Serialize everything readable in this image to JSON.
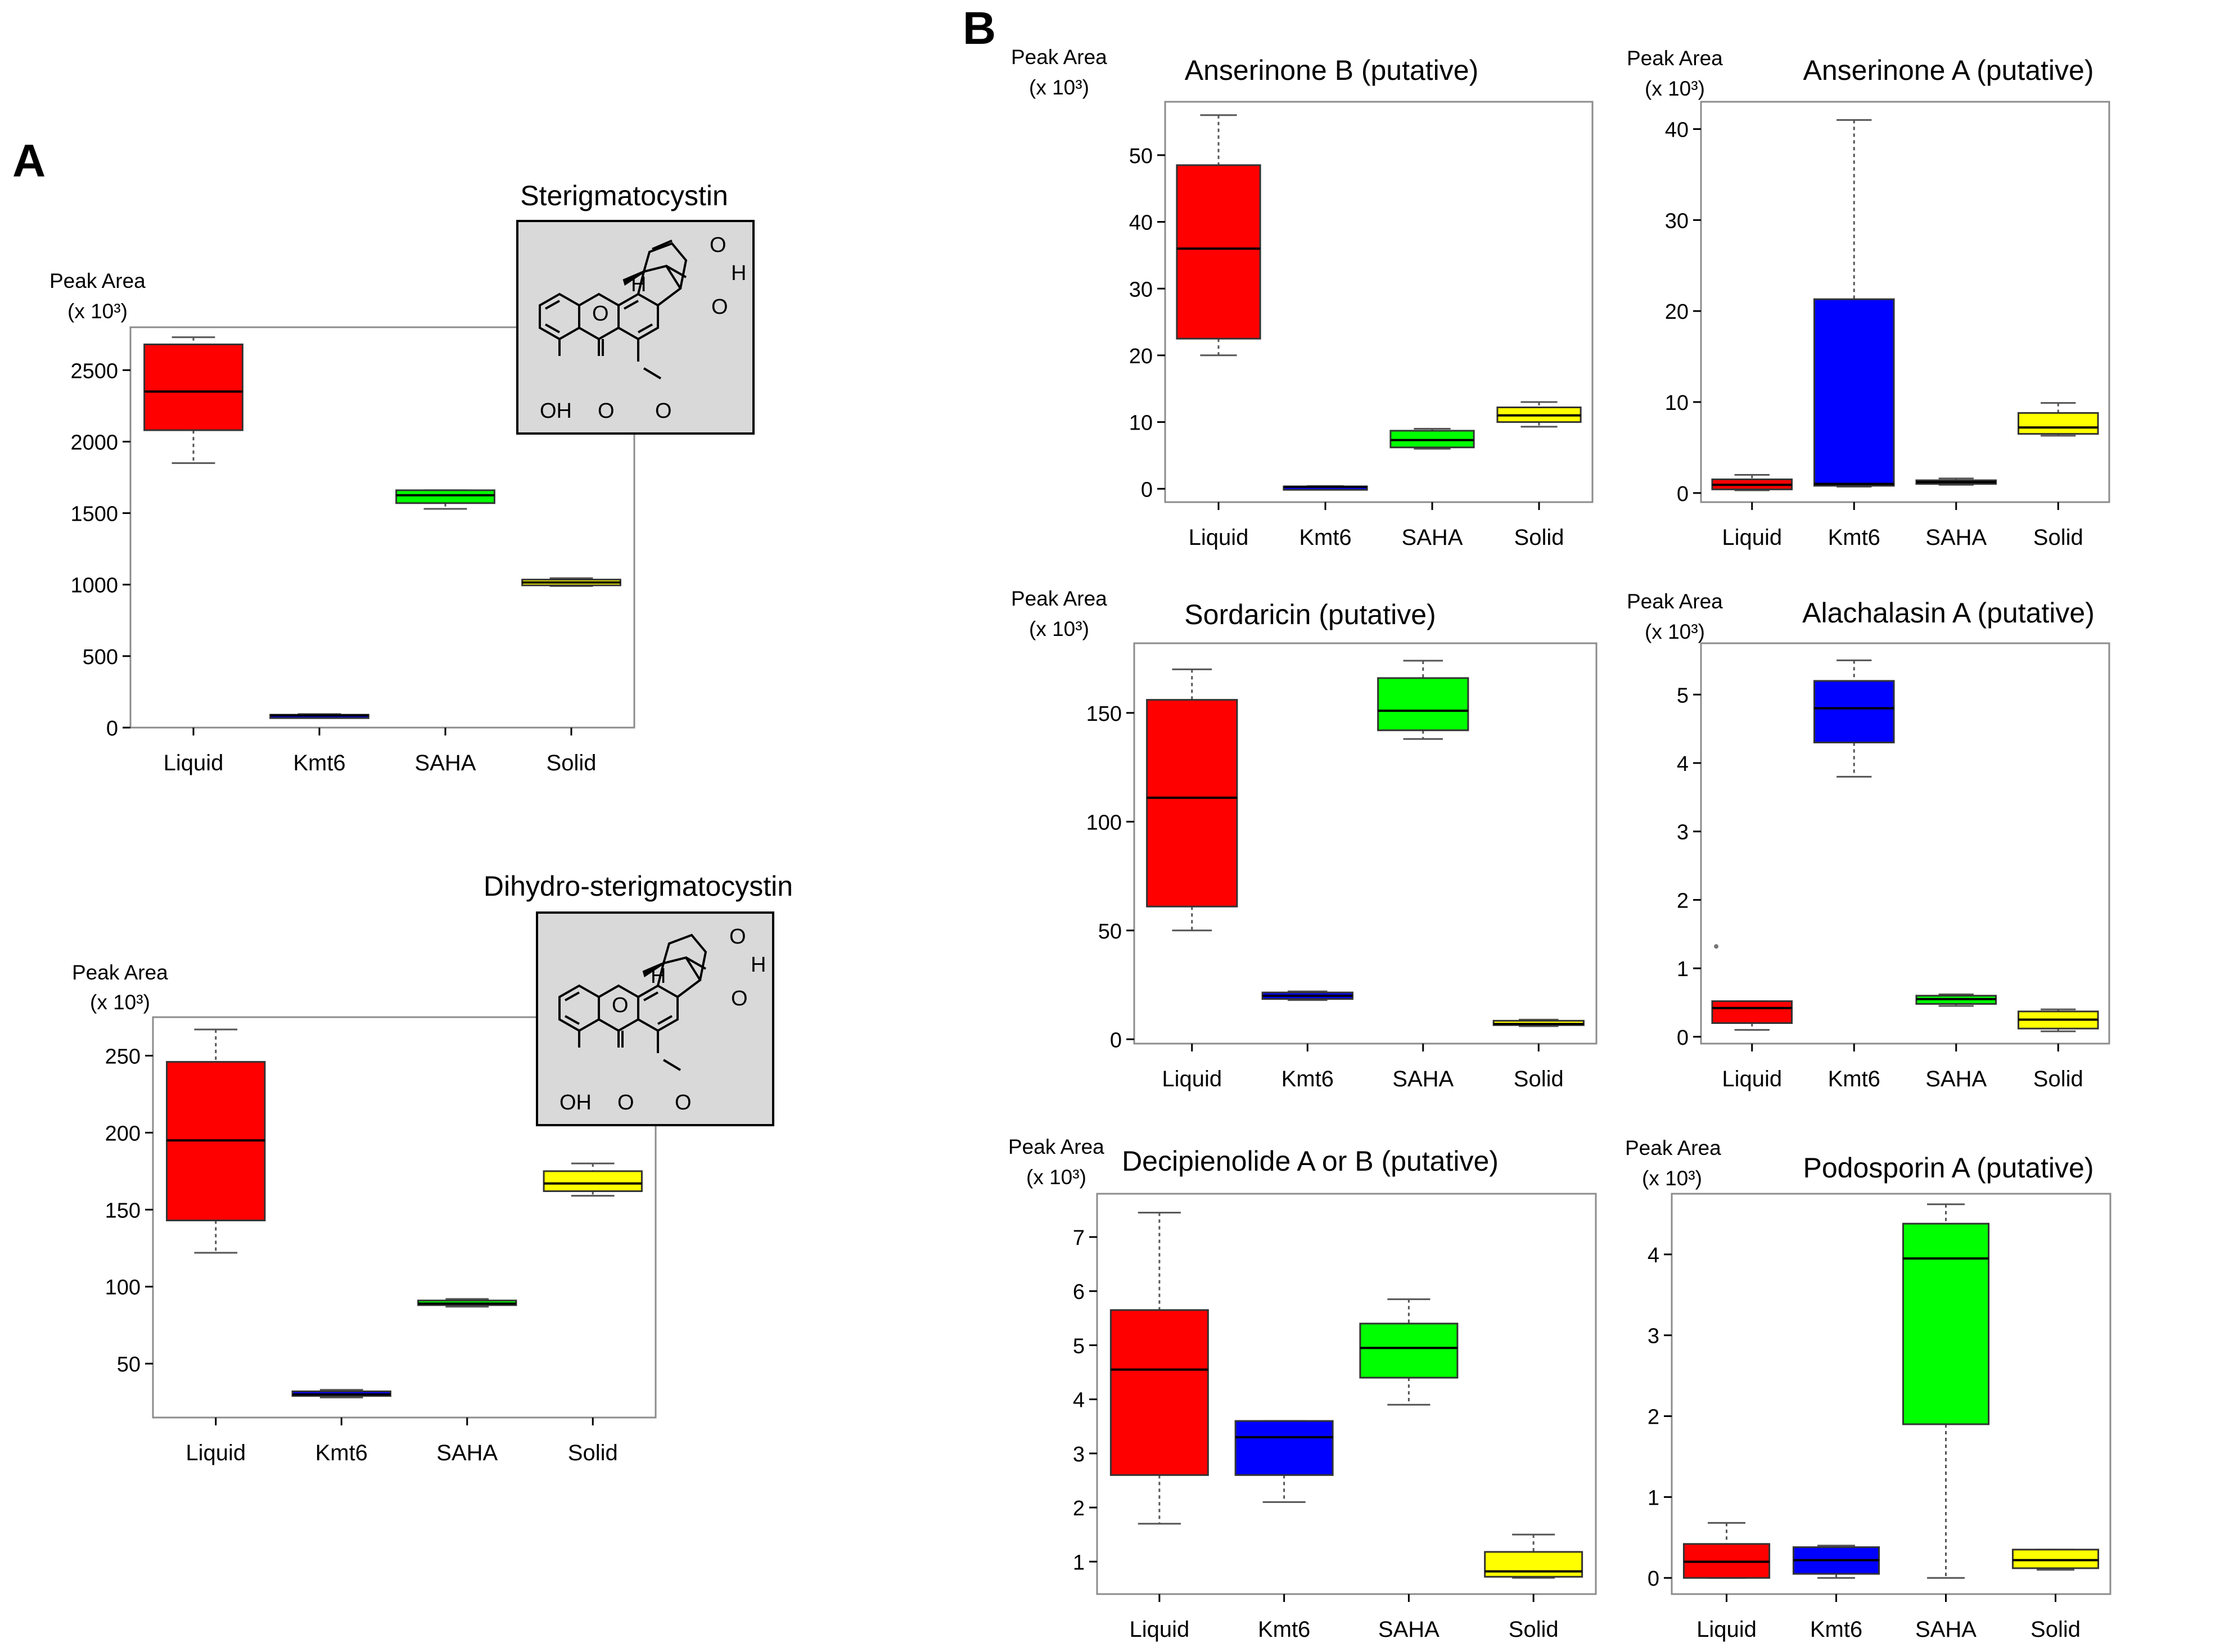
{
  "panel_letters": {
    "a": "A",
    "b": "B"
  },
  "colors": {
    "Liquid": "#ff0000",
    "Kmt6": "#0000ff",
    "SAHA": "#00ff00",
    "Solid": "#ffff00"
  },
  "structure_images": [
    {
      "label": "Sterigmatocystin",
      "atoms": [
        "O",
        "O",
        "H",
        "H",
        "O",
        "OH",
        "O",
        "O"
      ]
    },
    {
      "label": "Dihydro-sterigmatocystin",
      "atoms": [
        "O",
        "O",
        "H",
        "H",
        "O",
        "OH",
        "O",
        "O"
      ]
    }
  ],
  "chart_data": [
    {
      "id": "A1",
      "type": "box",
      "title": "Sterigmatocystin",
      "ylabel": "Peak Area",
      "yunit": "(x 10³)",
      "categories": [
        "Liquid",
        "Kmt6",
        "SAHA",
        "Solid"
      ],
      "ylim": [
        0,
        2800
      ],
      "yticks": [
        0,
        500,
        1000,
        1500,
        2000,
        2500
      ],
      "boxes": [
        {
          "min": 1850,
          "q1": 2080,
          "median": 2350,
          "q3": 2680,
          "max": 2730
        },
        {
          "min": 75,
          "q1": 80,
          "median": 85,
          "q3": 90,
          "max": 95
        },
        {
          "min": 1530,
          "q1": 1570,
          "median": 1625,
          "q3": 1660,
          "max": 1660
        },
        {
          "min": 990,
          "q1": 995,
          "median": 1015,
          "q3": 1035,
          "max": 1045
        }
      ]
    },
    {
      "id": "A2",
      "type": "box",
      "title": "Dihydro-sterigmatocystin",
      "ylabel": "Peak Area",
      "yunit": "(x 10³)",
      "categories": [
        "Liquid",
        "Kmt6",
        "SAHA",
        "Solid"
      ],
      "ylim": [
        15,
        275
      ],
      "yticks": [
        50,
        100,
        150,
        200,
        250
      ],
      "boxes": [
        {
          "min": 122,
          "q1": 143,
          "median": 195,
          "q3": 246,
          "max": 267
        },
        {
          "min": 28,
          "q1": 29,
          "median": 30,
          "q3": 32,
          "max": 33
        },
        {
          "min": 87,
          "q1": 88,
          "median": 89,
          "q3": 91,
          "max": 92
        },
        {
          "min": 159,
          "q1": 162,
          "median": 167,
          "q3": 175,
          "max": 180
        }
      ]
    },
    {
      "id": "B1",
      "type": "box",
      "title": "Anserinone B (putative)",
      "ylabel": "Peak Area",
      "yunit": "(x 10³)",
      "categories": [
        "Liquid",
        "Kmt6",
        "SAHA",
        "Solid"
      ],
      "ylim": [
        -2,
        58
      ],
      "yticks": [
        0,
        10,
        20,
        30,
        40,
        50
      ],
      "boxes": [
        {
          "min": 20,
          "q1": 22.5,
          "median": 36,
          "q3": 48.5,
          "max": 56
        },
        {
          "min": 0.2,
          "q1": 0.25,
          "median": 0.3,
          "q3": 0.35,
          "max": 0.4
        },
        {
          "min": 6,
          "q1": 6.2,
          "median": 7.3,
          "q3": 8.7,
          "max": 9
        },
        {
          "min": 9.3,
          "q1": 10,
          "median": 11,
          "q3": 12.2,
          "max": 13
        }
      ]
    },
    {
      "id": "B2",
      "type": "box",
      "title": "Anserinone A (putative)",
      "ylabel": "Peak Area",
      "yunit": "(x 10³)",
      "categories": [
        "Liquid",
        "Kmt6",
        "SAHA",
        "Solid"
      ],
      "ylim": [
        -1,
        43
      ],
      "yticks": [
        0,
        10,
        20,
        30,
        40
      ],
      "boxes": [
        {
          "min": 0.3,
          "q1": 0.4,
          "median": 0.9,
          "q3": 1.5,
          "max": 2
        },
        {
          "min": 0.7,
          "q1": 0.8,
          "median": 1,
          "q3": 21.3,
          "max": 41
        },
        {
          "min": 0.9,
          "q1": 1,
          "median": 1.2,
          "q3": 1.4,
          "max": 1.6
        },
        {
          "min": 6.3,
          "q1": 6.5,
          "median": 7.2,
          "q3": 8.8,
          "max": 9.9
        }
      ]
    },
    {
      "id": "B3",
      "type": "box",
      "title": "Sordaricin (putative)",
      "ylabel": "Peak Area",
      "yunit": "(x 10³)",
      "categories": [
        "Liquid",
        "Kmt6",
        "SAHA",
        "Solid"
      ],
      "ylim": [
        -2,
        182
      ],
      "yticks": [
        0,
        50,
        100,
        150
      ],
      "boxes": [
        {
          "min": 50,
          "q1": 61,
          "median": 111,
          "q3": 156,
          "max": 170
        },
        {
          "min": 18,
          "q1": 18.5,
          "median": 20,
          "q3": 21.5,
          "max": 22
        },
        {
          "min": 138,
          "q1": 142,
          "median": 151,
          "q3": 166,
          "max": 174
        },
        {
          "min": 6,
          "q1": 6.5,
          "median": 7,
          "q3": 8.5,
          "max": 9
        }
      ]
    },
    {
      "id": "B4",
      "type": "box",
      "title": "Alachalasin A (putative)",
      "ylabel": "Peak Area",
      "yunit": "(x 10³)",
      "categories": [
        "Liquid",
        "Kmt6",
        "SAHA",
        "Solid"
      ],
      "ylim": [
        -0.1,
        5.75
      ],
      "yticks": [
        0,
        1,
        2,
        3,
        4,
        5
      ],
      "boxes": [
        {
          "min": 0.1,
          "q1": 0.2,
          "median": 0.42,
          "q3": 0.52,
          "max": 0.52,
          "outliers": [
            1.32
          ]
        },
        {
          "min": 3.8,
          "q1": 4.3,
          "median": 4.8,
          "q3": 5.2,
          "max": 5.5
        },
        {
          "min": 0.45,
          "q1": 0.48,
          "median": 0.55,
          "q3": 0.6,
          "max": 0.62
        },
        {
          "min": 0.08,
          "q1": 0.12,
          "median": 0.25,
          "q3": 0.37,
          "max": 0.4
        }
      ]
    },
    {
      "id": "B5",
      "type": "box",
      "title": "Decipienolide A or B (putative)",
      "ylabel": "Peak Area",
      "yunit": "(x 10³)",
      "categories": [
        "Liquid",
        "Kmt6",
        "SAHA",
        "Solid"
      ],
      "ylim": [
        0.4,
        7.8
      ],
      "yticks": [
        1,
        2,
        3,
        4,
        5,
        6,
        7
      ],
      "boxes": [
        {
          "min": 1.7,
          "q1": 2.6,
          "median": 4.55,
          "q3": 5.65,
          "max": 7.45
        },
        {
          "min": 2.1,
          "q1": 2.6,
          "median": 3.3,
          "q3": 3.6,
          "max": 3.6
        },
        {
          "min": 3.9,
          "q1": 4.4,
          "median": 4.95,
          "q3": 5.4,
          "max": 5.85
        },
        {
          "min": 0.7,
          "q1": 0.72,
          "median": 0.82,
          "q3": 1.18,
          "max": 1.5
        }
      ]
    },
    {
      "id": "B6",
      "type": "box",
      "title": "Podosporin A (putative)",
      "ylabel": "Peak Area",
      "yunit": "(x 10³)",
      "categories": [
        "Liquid",
        "Kmt6",
        "SAHA",
        "Solid"
      ],
      "ylim": [
        -0.2,
        4.75
      ],
      "yticks": [
        0,
        1,
        2,
        3,
        4
      ],
      "boxes": [
        {
          "min": 0,
          "q1": 0,
          "median": 0.2,
          "q3": 0.42,
          "max": 0.68
        },
        {
          "min": 0,
          "q1": 0.05,
          "median": 0.22,
          "q3": 0.38,
          "max": 0.4
        },
        {
          "min": 0,
          "q1": 1.9,
          "median": 3.95,
          "q3": 4.38,
          "max": 4.62
        },
        {
          "min": 0.1,
          "q1": 0.12,
          "median": 0.22,
          "q3": 0.35,
          "max": 0.35
        }
      ]
    }
  ]
}
